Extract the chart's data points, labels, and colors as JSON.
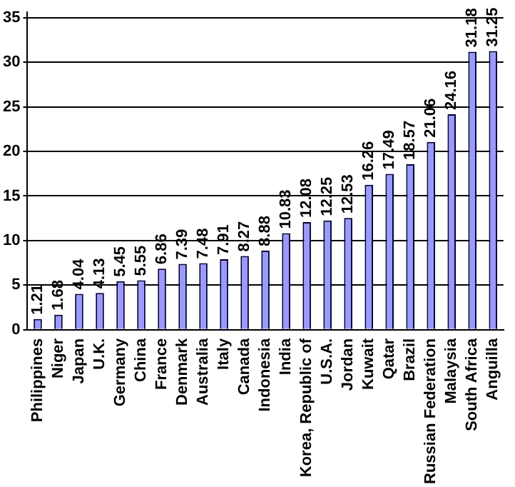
{
  "chart_data": {
    "type": "bar",
    "categories": [
      "Philippines",
      "Niger",
      "Japan",
      "U.K.",
      "Germany",
      "China",
      "France",
      "Denmark",
      "Australia",
      "Italy",
      "Canada",
      "Indonesia",
      "India",
      "Korea, Republic of",
      "U.S.A.",
      "Jordan",
      "Kuwait",
      "Qatar",
      "Brazil",
      "Russian Federation",
      "Malaysia",
      "South Africa",
      "Anguilla"
    ],
    "values": [
      1.21,
      1.68,
      4.04,
      4.13,
      5.45,
      5.55,
      6.86,
      7.39,
      7.48,
      7.91,
      8.27,
      8.88,
      10.83,
      12.08,
      12.25,
      12.53,
      16.26,
      17.49,
      18.57,
      21.06,
      24.16,
      31.18,
      31.25
    ],
    "color": "#9999ff",
    "ylim": [
      0,
      35.6
    ],
    "yticks": [
      0,
      5,
      10,
      15,
      20,
      25,
      30,
      35
    ],
    "grid": "y",
    "data_labels": true
  }
}
